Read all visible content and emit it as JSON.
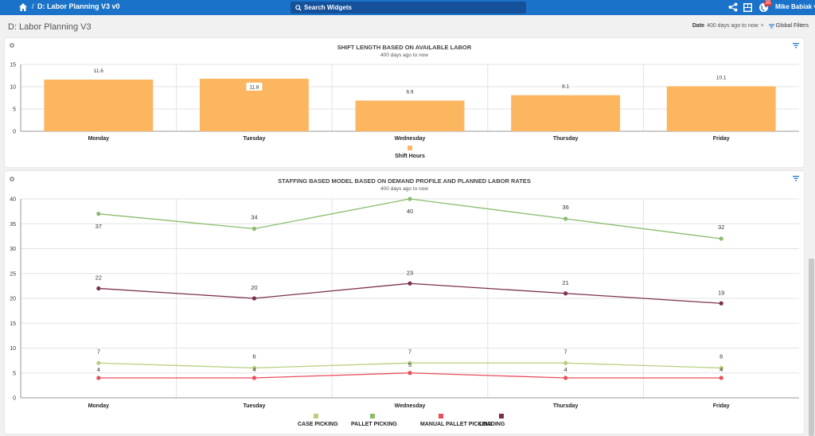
{
  "topbar": {
    "breadcrumb_sep": "/",
    "title": "D: Labor Planning V3 v0",
    "search_placeholder": "Search Widgets",
    "notification_count": "35",
    "user": "Mike Babiak ▾"
  },
  "header": {
    "page_title": "D: Labor Planning V3",
    "filter_label": "Date",
    "filter_value": "400 days ago to now",
    "filter_clear": "×",
    "global_filters": "Global Filters"
  },
  "colors": {
    "brand": "#1a73c8",
    "bar": "#fdb660",
    "case_picking": "#b8cf7d",
    "pallet_picking": "#8bbb6e",
    "manual_pallet_picking": "#e94e5b",
    "loading": "#7b3050"
  },
  "icons": [
    "menu-icon",
    "home-icon",
    "search-icon",
    "share-icon",
    "grid-icon",
    "globe-icon",
    "gear-icon",
    "funnel-icon"
  ],
  "widgets": [
    {
      "title": "SHIFT LENGTH BASED ON AVAILABLE LABOR",
      "subtitle": "400 days ago to now",
      "chart_data": {
        "type": "bar",
        "categories": [
          "Monday",
          "Tuesday",
          "Wednesday",
          "Thursday",
          "Friday"
        ],
        "series": [
          {
            "name": "Shift Hours",
            "values": [
              11.6,
              11.8,
              6.9,
              8.1,
              10.1
            ]
          }
        ],
        "y_ticks": [
          0,
          5,
          10,
          15
        ],
        "ylim": [
          0,
          15
        ],
        "grid": true,
        "legend": "bottom"
      }
    },
    {
      "title": "STAFFING BASED MODEL BASED ON DEMAND PROFILE AND PLANNED LABOR RATES",
      "subtitle": "400 days ago to now",
      "chart_data": {
        "type": "line",
        "categories": [
          "Monday",
          "Tuesday",
          "Wednesday",
          "Thursday",
          "Friday"
        ],
        "series": [
          {
            "name": "CASE PICKING",
            "values": [
              7,
              6,
              7,
              7,
              6
            ]
          },
          {
            "name": "PALLET PICKING",
            "values": [
              37,
              34,
              40,
              36,
              32
            ]
          },
          {
            "name": "MANUAL PALLET PICKING",
            "values": [
              4,
              4,
              5,
              4,
              4
            ]
          },
          {
            "name": "LOADING",
            "values": [
              22,
              20,
              23,
              21,
              19
            ]
          }
        ],
        "y_ticks": [
          0,
          5,
          10,
          15,
          20,
          25,
          30,
          35,
          40
        ],
        "ylim": [
          0,
          40
        ],
        "grid": true,
        "legend": "bottom"
      }
    }
  ]
}
